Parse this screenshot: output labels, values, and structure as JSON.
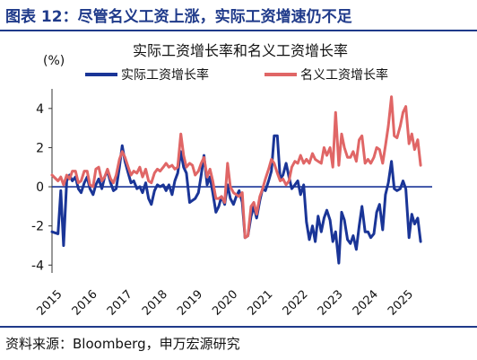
{
  "figure": {
    "title": "图表 12：尽管名义工资上涨，实际工资增速仍不足",
    "source": "资料来源：Bloomberg，申万宏源研究"
  },
  "colors": {
    "title_blue": "#1f3a8a",
    "real_wage": "#1a3597",
    "nominal_wage": "#e06666",
    "zero_line": "#1a3597"
  },
  "chart_data": {
    "type": "line",
    "title": "实际工资增长率和名义工资增长率",
    "unit_label": "(%)",
    "ylim": [
      -4.4,
      5.0
    ],
    "yticks": [
      -4,
      -2,
      0,
      2,
      4
    ],
    "ytick_labels": [
      "-4",
      "-2",
      "0",
      "2",
      "4"
    ],
    "xlim": [
      2015.0,
      2025.83
    ],
    "xticks": [
      2015,
      2016,
      2017,
      2018,
      2019,
      2020,
      2021,
      2022,
      2023,
      2024,
      2025
    ],
    "xtick_labels": [
      "2015",
      "2016",
      "2017",
      "2018",
      "2019",
      "2020",
      "2021",
      "2022",
      "2023",
      "2024",
      "2025"
    ],
    "legend_position": "top",
    "grid": false,
    "series": [
      {
        "name": "实际工资增长率",
        "color": "#1a3597",
        "points": [
          [
            2015.0,
            -2.3
          ],
          [
            2015.17,
            -2.4
          ],
          [
            2015.25,
            -0.2
          ],
          [
            2015.33,
            -3.0
          ],
          [
            2015.42,
            0.3
          ],
          [
            2015.5,
            0.6
          ],
          [
            2015.58,
            0.3
          ],
          [
            2015.67,
            0.5
          ],
          [
            2015.75,
            -0.1
          ],
          [
            2015.83,
            -0.3
          ],
          [
            2015.92,
            0.2
          ],
          [
            2016.0,
            0.5
          ],
          [
            2016.08,
            -0.1
          ],
          [
            2016.17,
            -0.4
          ],
          [
            2016.25,
            0.1
          ],
          [
            2016.33,
            0.4
          ],
          [
            2016.42,
            -0.1
          ],
          [
            2016.5,
            0.5
          ],
          [
            2016.58,
            0.8
          ],
          [
            2016.67,
            0.2
          ],
          [
            2016.75,
            -0.2
          ],
          [
            2016.83,
            -0.1
          ],
          [
            2016.92,
            1.0
          ],
          [
            2017.0,
            2.1
          ],
          [
            2017.08,
            1.3
          ],
          [
            2017.17,
            0.7
          ],
          [
            2017.25,
            0.2
          ],
          [
            2017.33,
            0.3
          ],
          [
            2017.42,
            -0.1
          ],
          [
            2017.5,
            0.0
          ],
          [
            2017.58,
            -0.3
          ],
          [
            2017.67,
            0.2
          ],
          [
            2017.75,
            -0.6
          ],
          [
            2017.83,
            -0.9
          ],
          [
            2017.92,
            -0.2
          ],
          [
            2018.0,
            0.1
          ],
          [
            2018.08,
            0.0
          ],
          [
            2018.17,
            0.1
          ],
          [
            2018.25,
            -0.2
          ],
          [
            2018.33,
            0.1
          ],
          [
            2018.42,
            -0.4
          ],
          [
            2018.5,
            0.3
          ],
          [
            2018.58,
            0.7
          ],
          [
            2018.67,
            1.8
          ],
          [
            2018.75,
            1.0
          ],
          [
            2018.83,
            0.7
          ],
          [
            2018.92,
            -0.8
          ],
          [
            2019.0,
            -0.7
          ],
          [
            2019.08,
            -0.6
          ],
          [
            2019.17,
            -0.3
          ],
          [
            2019.25,
            0.6
          ],
          [
            2019.33,
            1.6
          ],
          [
            2019.42,
            0.1
          ],
          [
            2019.5,
            0.5
          ],
          [
            2019.58,
            -0.3
          ],
          [
            2019.67,
            -1.3
          ],
          [
            2019.75,
            -1.0
          ],
          [
            2019.83,
            -0.5
          ],
          [
            2019.92,
            -0.9
          ],
          [
            2020.0,
            0.1
          ],
          [
            2020.08,
            -0.6
          ],
          [
            2020.17,
            -0.9
          ],
          [
            2020.25,
            -0.5
          ],
          [
            2020.33,
            -0.2
          ],
          [
            2020.42,
            -0.8
          ],
          [
            2020.5,
            -2.6
          ],
          [
            2020.58,
            -2.5
          ],
          [
            2020.67,
            -1.5
          ],
          [
            2020.75,
            -1.0
          ],
          [
            2020.83,
            -1.6
          ],
          [
            2020.92,
            -0.7
          ],
          [
            2021.0,
            -0.1
          ],
          [
            2021.08,
            -0.2
          ],
          [
            2021.17,
            0.3
          ],
          [
            2021.25,
            0.8
          ],
          [
            2021.33,
            2.6
          ],
          [
            2021.42,
            2.6
          ],
          [
            2021.5,
            0.4
          ],
          [
            2021.58,
            0.6
          ],
          [
            2021.67,
            1.2
          ],
          [
            2021.75,
            0.5
          ],
          [
            2021.83,
            -0.1
          ],
          [
            2021.92,
            0.1
          ],
          [
            2022.0,
            0.3
          ],
          [
            2022.08,
            -0.4
          ],
          [
            2022.17,
            0.1
          ],
          [
            2022.25,
            -1.8
          ],
          [
            2022.33,
            -2.7
          ],
          [
            2022.42,
            -2.0
          ],
          [
            2022.5,
            -2.8
          ],
          [
            2022.58,
            -1.5
          ],
          [
            2022.67,
            -2.3
          ],
          [
            2022.75,
            -1.6
          ],
          [
            2022.83,
            -1.2
          ],
          [
            2022.92,
            -1.7
          ],
          [
            2023.0,
            -2.8
          ],
          [
            2023.08,
            -2.3
          ],
          [
            2023.17,
            -3.9
          ],
          [
            2023.25,
            -1.3
          ],
          [
            2023.33,
            -1.7
          ],
          [
            2023.42,
            -2.7
          ],
          [
            2023.5,
            -2.9
          ],
          [
            2023.58,
            -2.5
          ],
          [
            2023.67,
            -3.2
          ],
          [
            2023.75,
            -2.0
          ],
          [
            2023.83,
            -1.0
          ],
          [
            2023.92,
            -2.3
          ],
          [
            2024.0,
            -2.3
          ],
          [
            2024.08,
            -2.6
          ],
          [
            2024.17,
            -2.4
          ],
          [
            2024.25,
            -1.3
          ],
          [
            2024.33,
            -0.9
          ],
          [
            2024.42,
            -2.2
          ],
          [
            2024.5,
            -0.4
          ],
          [
            2024.58,
            0.2
          ],
          [
            2024.67,
            1.3
          ],
          [
            2024.75,
            -0.1
          ],
          [
            2024.83,
            -0.2
          ],
          [
            2024.92,
            -0.1
          ],
          [
            2025.0,
            0.3
          ],
          [
            2025.08,
            -0.1
          ],
          [
            2025.17,
            -2.6
          ],
          [
            2025.25,
            -1.4
          ],
          [
            2025.33,
            -1.9
          ],
          [
            2025.42,
            -1.6
          ],
          [
            2025.5,
            -2.8
          ]
        ]
      },
      {
        "name": "名义工资增长率",
        "color": "#e06666",
        "points": [
          [
            2015.0,
            0.6
          ],
          [
            2015.17,
            0.3
          ],
          [
            2015.25,
            0.5
          ],
          [
            2015.33,
            0.1
          ],
          [
            2015.42,
            0.6
          ],
          [
            2015.5,
            0.4
          ],
          [
            2015.58,
            0.8
          ],
          [
            2015.67,
            0.8
          ],
          [
            2015.75,
            0.2
          ],
          [
            2015.83,
            0.3
          ],
          [
            2015.92,
            0.8
          ],
          [
            2016.0,
            0.8
          ],
          [
            2016.08,
            0.1
          ],
          [
            2016.17,
            0.0
          ],
          [
            2016.25,
            0.9
          ],
          [
            2016.33,
            1.0
          ],
          [
            2016.42,
            0.3
          ],
          [
            2016.5,
            0.5
          ],
          [
            2016.58,
            0.9
          ],
          [
            2016.67,
            0.4
          ],
          [
            2016.75,
            0.2
          ],
          [
            2016.83,
            0.6
          ],
          [
            2016.92,
            1.4
          ],
          [
            2017.0,
            1.8
          ],
          [
            2017.08,
            1.5
          ],
          [
            2017.17,
            1.0
          ],
          [
            2017.25,
            0.6
          ],
          [
            2017.33,
            0.8
          ],
          [
            2017.42,
            0.7
          ],
          [
            2017.5,
            1.0
          ],
          [
            2017.58,
            0.5
          ],
          [
            2017.67,
            0.9
          ],
          [
            2017.75,
            0.3
          ],
          [
            2017.83,
            0.2
          ],
          [
            2017.92,
            0.7
          ],
          [
            2018.0,
            0.9
          ],
          [
            2018.08,
            0.8
          ],
          [
            2018.17,
            1.0
          ],
          [
            2018.25,
            1.2
          ],
          [
            2018.33,
            1.0
          ],
          [
            2018.42,
            1.1
          ],
          [
            2018.5,
            0.9
          ],
          [
            2018.58,
            1.0
          ],
          [
            2018.67,
            2.7
          ],
          [
            2018.75,
            1.6
          ],
          [
            2018.83,
            1.0
          ],
          [
            2018.92,
            1.2
          ],
          [
            2019.0,
            1.1
          ],
          [
            2019.08,
            0.6
          ],
          [
            2019.17,
            0.8
          ],
          [
            2019.25,
            1.2
          ],
          [
            2019.33,
            1.5
          ],
          [
            2019.42,
            0.5
          ],
          [
            2019.5,
            0.9
          ],
          [
            2019.58,
            0.3
          ],
          [
            2019.67,
            -0.6
          ],
          [
            2019.75,
            -0.6
          ],
          [
            2019.83,
            -0.5
          ],
          [
            2019.92,
            -0.8
          ],
          [
            2020.0,
            1.2
          ],
          [
            2020.08,
            0.0
          ],
          [
            2020.17,
            -0.3
          ],
          [
            2020.25,
            -0.4
          ],
          [
            2020.33,
            -0.5
          ],
          [
            2020.42,
            -0.3
          ],
          [
            2020.5,
            -2.6
          ],
          [
            2020.58,
            -2.5
          ],
          [
            2020.67,
            -1.0
          ],
          [
            2020.75,
            -0.8
          ],
          [
            2020.83,
            -1.4
          ],
          [
            2020.92,
            -0.5
          ],
          [
            2021.0,
            -0.1
          ],
          [
            2021.08,
            0.4
          ],
          [
            2021.17,
            0.9
          ],
          [
            2021.25,
            1.4
          ],
          [
            2021.33,
            1.2
          ],
          [
            2021.42,
            0.7
          ],
          [
            2021.5,
            0.3
          ],
          [
            2021.58,
            0.4
          ],
          [
            2021.67,
            0.1
          ],
          [
            2021.75,
            0.3
          ],
          [
            2021.83,
            1.0
          ],
          [
            2021.92,
            1.3
          ],
          [
            2022.0,
            1.2
          ],
          [
            2022.08,
            1.6
          ],
          [
            2022.17,
            1.2
          ],
          [
            2022.25,
            1.4
          ],
          [
            2022.33,
            1.2
          ],
          [
            2022.42,
            1.7
          ],
          [
            2022.5,
            1.4
          ],
          [
            2022.58,
            1.3
          ],
          [
            2022.67,
            1.2
          ],
          [
            2022.75,
            2.0
          ],
          [
            2022.83,
            1.6
          ],
          [
            2022.92,
            2.0
          ],
          [
            2023.0,
            1.0
          ],
          [
            2023.08,
            3.8
          ],
          [
            2023.17,
            1.1
          ],
          [
            2023.25,
            2.7
          ],
          [
            2023.33,
            2.0
          ],
          [
            2023.42,
            1.5
          ],
          [
            2023.5,
            1.5
          ],
          [
            2023.58,
            1.8
          ],
          [
            2023.67,
            1.3
          ],
          [
            2023.75,
            2.4
          ],
          [
            2023.83,
            2.6
          ],
          [
            2023.92,
            1.2
          ],
          [
            2024.0,
            1.4
          ],
          [
            2024.08,
            1.2
          ],
          [
            2024.17,
            1.5
          ],
          [
            2024.25,
            2.0
          ],
          [
            2024.33,
            1.9
          ],
          [
            2024.42,
            1.2
          ],
          [
            2024.5,
            2.1
          ],
          [
            2024.58,
            3.1
          ],
          [
            2024.67,
            4.6
          ],
          [
            2024.75,
            2.6
          ],
          [
            2024.83,
            2.5
          ],
          [
            2024.92,
            3.1
          ],
          [
            2025.0,
            3.8
          ],
          [
            2025.08,
            4.1
          ],
          [
            2025.17,
            2.2
          ],
          [
            2025.25,
            2.7
          ],
          [
            2025.33,
            1.9
          ],
          [
            2025.42,
            2.4
          ],
          [
            2025.5,
            1.1
          ]
        ]
      }
    ]
  }
}
